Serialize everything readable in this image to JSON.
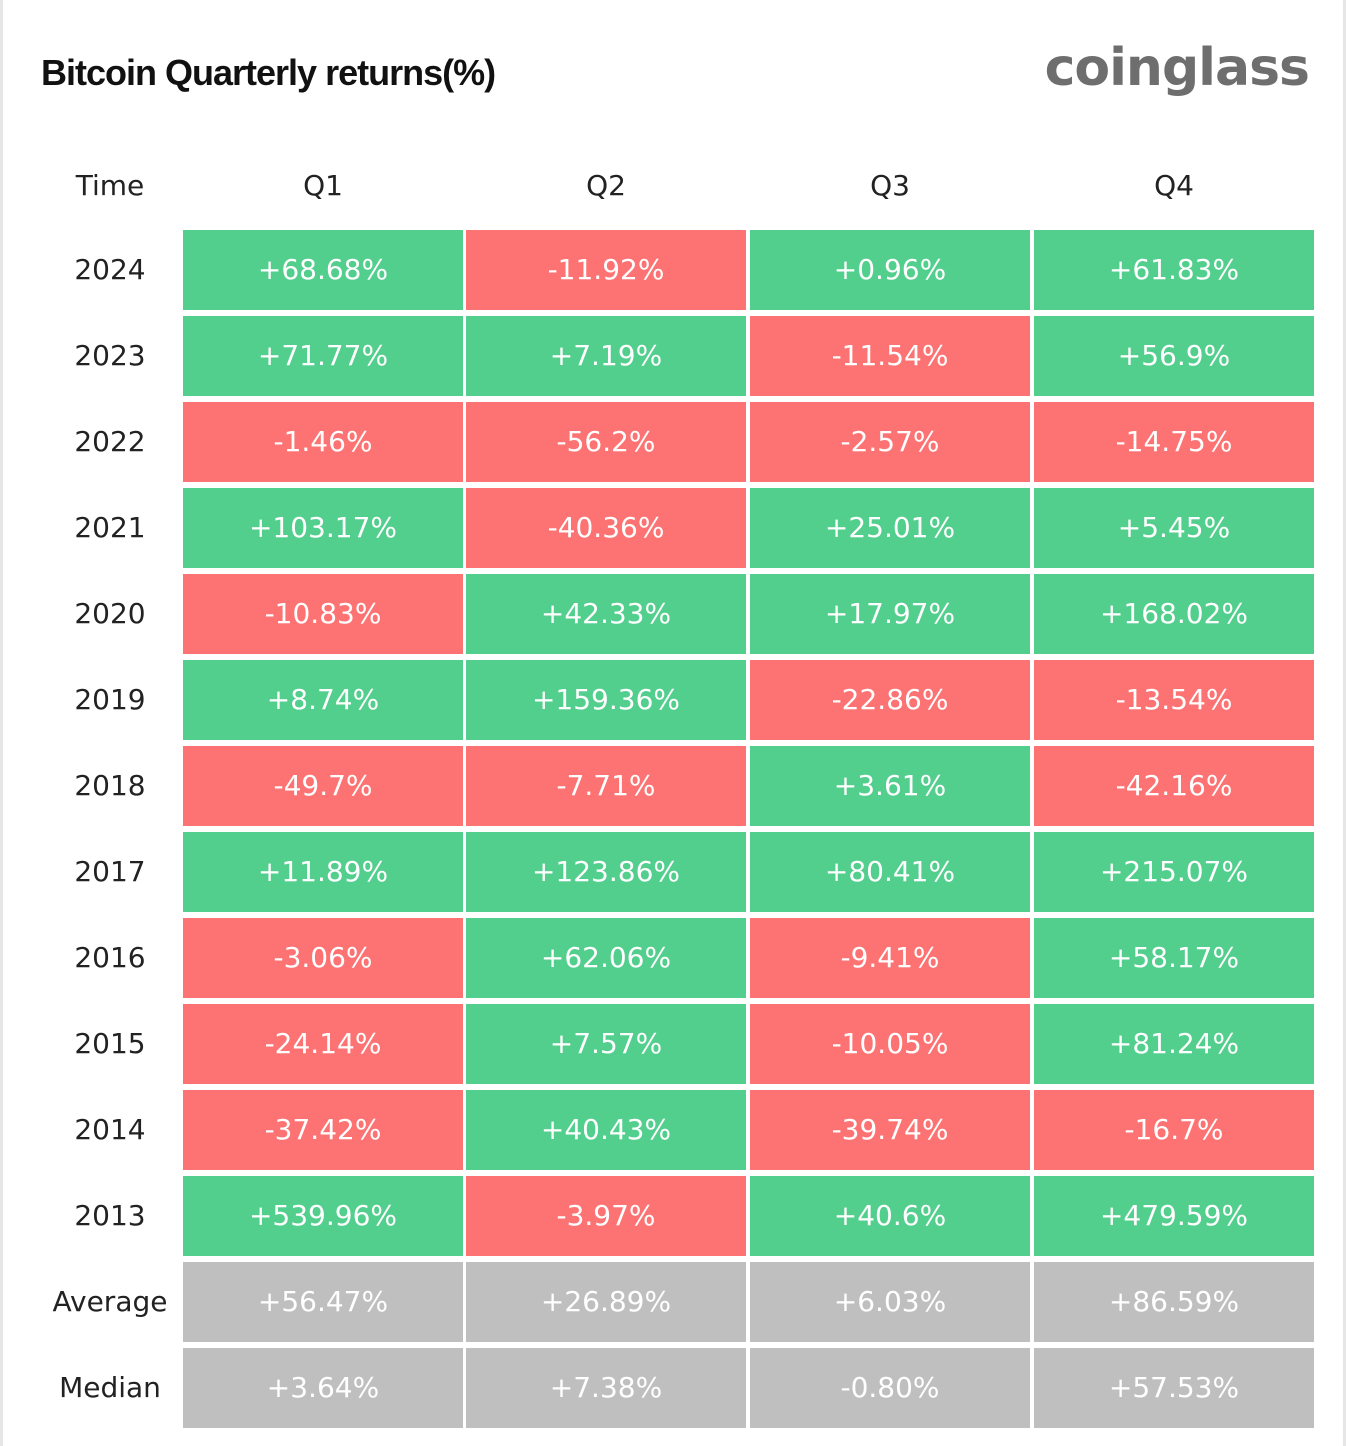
{
  "colors": {
    "positive": "#52ce8d",
    "negative": "#fd7272",
    "summary": "#bfbfbf"
  },
  "chart_data": {
    "type": "table",
    "title": "Bitcoin Quarterly returns(%)",
    "brand": "coinglass",
    "row_header": "Time",
    "columns": [
      "Q1",
      "Q2",
      "Q3",
      "Q4"
    ],
    "rows": [
      {
        "label": "2024",
        "values": [
          "+68.68%",
          "-11.92%",
          "+0.96%",
          "+61.83%"
        ]
      },
      {
        "label": "2023",
        "values": [
          "+71.77%",
          "+7.19%",
          "-11.54%",
          "+56.9%"
        ]
      },
      {
        "label": "2022",
        "values": [
          "-1.46%",
          "-56.2%",
          "-2.57%",
          "-14.75%"
        ]
      },
      {
        "label": "2021",
        "values": [
          "+103.17%",
          "-40.36%",
          "+25.01%",
          "+5.45%"
        ]
      },
      {
        "label": "2020",
        "values": [
          "-10.83%",
          "+42.33%",
          "+17.97%",
          "+168.02%"
        ]
      },
      {
        "label": "2019",
        "values": [
          "+8.74%",
          "+159.36%",
          "-22.86%",
          "-13.54%"
        ]
      },
      {
        "label": "2018",
        "values": [
          "-49.7%",
          "-7.71%",
          "+3.61%",
          "-42.16%"
        ]
      },
      {
        "label": "2017",
        "values": [
          "+11.89%",
          "+123.86%",
          "+80.41%",
          "+215.07%"
        ]
      },
      {
        "label": "2016",
        "values": [
          "-3.06%",
          "+62.06%",
          "-9.41%",
          "+58.17%"
        ]
      },
      {
        "label": "2015",
        "values": [
          "-24.14%",
          "+7.57%",
          "-10.05%",
          "+81.24%"
        ]
      },
      {
        "label": "2014",
        "values": [
          "-37.42%",
          "+40.43%",
          "-39.74%",
          "-16.7%"
        ]
      },
      {
        "label": "2013",
        "values": [
          "+539.96%",
          "-3.97%",
          "+40.6%",
          "+479.59%"
        ]
      }
    ],
    "summary_rows": [
      {
        "label": "Average",
        "values": [
          "+56.47%",
          "+26.89%",
          "+6.03%",
          "+86.59%"
        ]
      },
      {
        "label": "Median",
        "values": [
          "+3.64%",
          "+7.38%",
          "-0.80%",
          "+57.53%"
        ]
      }
    ]
  }
}
